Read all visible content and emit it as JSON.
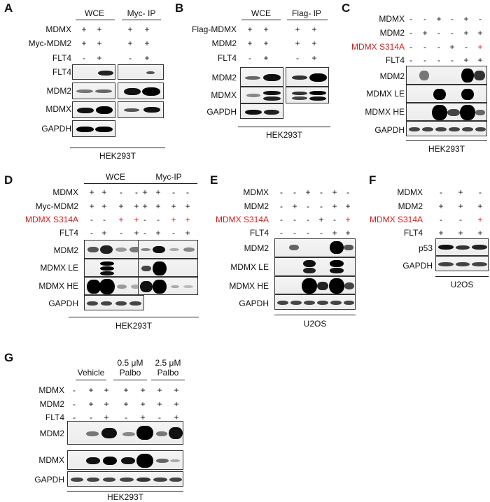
{
  "panels": {
    "A": {
      "label": "A",
      "headers": [
        "WCE",
        "Myc- IP"
      ],
      "rows": [
        {
          "label": "MDMX",
          "signs": [
            "+",
            "+",
            "+",
            "+"
          ]
        },
        {
          "label": "Myc-MDM2",
          "signs": [
            "+",
            "+",
            "+",
            "+"
          ]
        },
        {
          "label": "FLT4",
          "signs": [
            "-",
            "+",
            "-",
            "+"
          ]
        }
      ],
      "blots": [
        "FLT4",
        "MDM2",
        "MDMX",
        "GAPDH"
      ],
      "cell": "HEK293T"
    },
    "B": {
      "label": "B",
      "headers": [
        "WCE",
        "Flag- IP"
      ],
      "rows": [
        {
          "label": "Flag-MDMX",
          "signs": [
            "+",
            "+",
            "+",
            "+"
          ]
        },
        {
          "label": "MDM2",
          "signs": [
            "+",
            "+",
            "+",
            "+"
          ]
        },
        {
          "label": "FLT4",
          "signs": [
            "-",
            "+",
            "-",
            "+"
          ]
        }
      ],
      "blots": [
        "MDM2",
        "MDMX",
        "GAPDH"
      ],
      "cell": "HEK293T"
    },
    "C": {
      "label": "C",
      "rows": [
        {
          "label": "MDMX",
          "signs": [
            "-",
            "-",
            "+",
            "-",
            "+",
            "-"
          ]
        },
        {
          "label": "MDM2",
          "signs": [
            "-",
            "+",
            "-",
            "-",
            "+",
            "+"
          ]
        },
        {
          "label": "MDMX S314A",
          "signs": [
            "-",
            "-",
            "-",
            "+",
            "-",
            "+"
          ],
          "red": true
        },
        {
          "label": "FLT4",
          "signs": [
            "-",
            "-",
            "-",
            "-",
            "+",
            "+"
          ]
        }
      ],
      "blots": [
        "MDM2",
        "MDMX LE",
        "MDMX HE",
        "GAPDH"
      ],
      "cell": "HEK293T"
    },
    "D": {
      "label": "D",
      "headers": [
        "WCE",
        "Myc-IP"
      ],
      "rows": [
        {
          "label": "MDMX",
          "signs": [
            "+",
            "+",
            "-",
            "-",
            "+",
            "+",
            "-",
            "-"
          ]
        },
        {
          "label": "Myc-MDM2",
          "signs": [
            "+",
            "+",
            "+",
            "+",
            "+",
            "+",
            "+",
            "+"
          ]
        },
        {
          "label": "MDMX S314A",
          "signs": [
            "-",
            "-",
            "+",
            "+",
            "-",
            "-",
            "+",
            "+"
          ],
          "red": true
        },
        {
          "label": "FLT4",
          "signs": [
            "-",
            "+",
            "-",
            "+",
            "-",
            "+",
            "-",
            "+"
          ]
        }
      ],
      "blots": [
        "MDM2",
        "MDMX LE",
        "MDMX HE",
        "GAPDH"
      ],
      "cell": "HEK293T"
    },
    "E": {
      "label": "E",
      "rows": [
        {
          "label": "MDMX",
          "signs": [
            "-",
            "-",
            "+",
            "-",
            "+",
            "-"
          ]
        },
        {
          "label": "MDM2",
          "signs": [
            "-",
            "+",
            "-",
            "-",
            "+",
            "+"
          ]
        },
        {
          "label": "MDMX S314A",
          "signs": [
            "-",
            "-",
            "-",
            "+",
            "-",
            "+"
          ],
          "red": true
        },
        {
          "label": "FLT4",
          "signs": [
            "-",
            "-",
            "-",
            "-",
            "+",
            "+"
          ]
        }
      ],
      "blots": [
        "MDM2",
        "MDMX LE",
        "MDMX HE",
        "GAPDH"
      ],
      "cell": "U2OS"
    },
    "F": {
      "label": "F",
      "rows": [
        {
          "label": "MDMX",
          "signs": [
            "-",
            "+",
            "-"
          ]
        },
        {
          "label": "MDM2",
          "signs": [
            "+",
            "+",
            "+"
          ]
        },
        {
          "label": "MDMX S314A",
          "signs": [
            "-",
            "-",
            "+"
          ],
          "red": true
        },
        {
          "label": "FLT4",
          "signs": [
            "+",
            "+",
            "+"
          ]
        }
      ],
      "blots": [
        "p53",
        "GAPDH"
      ],
      "cell": "U2OS"
    },
    "G": {
      "label": "G",
      "headers": [
        "Vehicle",
        "0.5 μM",
        "Palbo",
        "2.5 μM",
        "Palbo"
      ],
      "rows": [
        {
          "label": "MDMX",
          "signs": [
            "-",
            "+",
            "+",
            "+",
            "+",
            "+",
            "+"
          ]
        },
        {
          "label": "MDM2",
          "signs": [
            "-",
            "+",
            "+",
            "+",
            "+",
            "+",
            "+"
          ]
        },
        {
          "label": "FLT4",
          "signs": [
            "-",
            "-",
            "+",
            "-",
            "+",
            "-",
            "+"
          ]
        }
      ],
      "blots": [
        "MDM2",
        "MDMX",
        "GAPDH"
      ],
      "cell": "HEK293T"
    }
  },
  "colors": {
    "red_label": "#d21f1f",
    "band": "#1a1a1a"
  }
}
